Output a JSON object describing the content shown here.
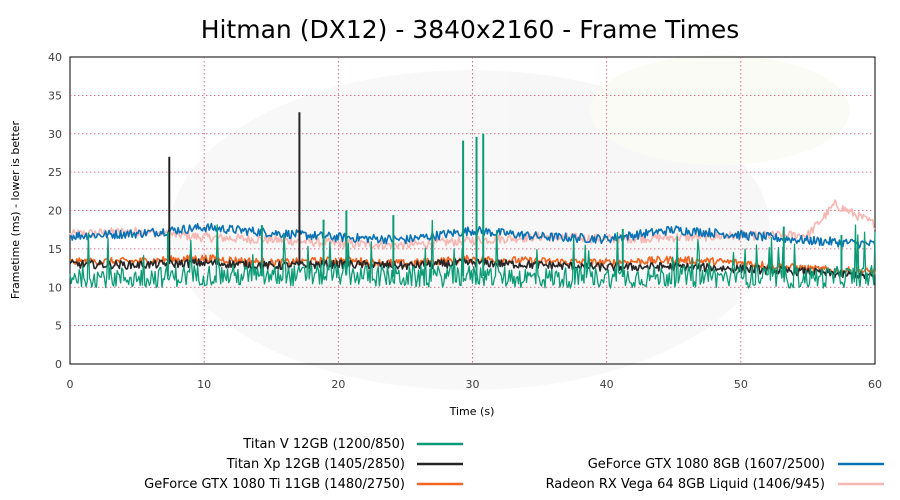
{
  "chart_data": {
    "type": "line",
    "title": "Hitman (DX12) - 3840x2160 - Frame Times",
    "xlabel": "Time (s)",
    "ylabel": "Frametime (ms) - lower is better",
    "xlim": [
      0,
      60
    ],
    "ylim": [
      0,
      40
    ],
    "xticks": [
      0,
      10,
      20,
      30,
      40,
      50,
      60
    ],
    "yticks": [
      0,
      5,
      10,
      15,
      20,
      25,
      30,
      35,
      40
    ],
    "grid": true,
    "legend_position": "bottom",
    "series": [
      {
        "name": "Titan V 12GB (1200/850)",
        "color": "#0b9b75",
        "x": [
          0,
          5,
          10,
          15,
          20,
          25,
          30,
          35,
          40,
          45,
          50,
          55,
          60
        ],
        "y": [
          11.5,
          11.2,
          11.6,
          11.4,
          11.7,
          11.3,
          11.5,
          11.2,
          11.3,
          11.4,
          11.3,
          11.2,
          11.5
        ],
        "spikes": [
          [
            7.3,
            17.2
          ],
          [
            14.3,
            18.1
          ],
          [
            18.9,
            18.8
          ],
          [
            20.6,
            20.0
          ],
          [
            24.1,
            19.4
          ],
          [
            29.3,
            29.1
          ],
          [
            30.3,
            29.6
          ],
          [
            30.8,
            30.0
          ],
          [
            41.2,
            17.6
          ],
          [
            53.2,
            17.9
          ],
          [
            57.5,
            16.8
          ]
        ]
      },
      {
        "name": "Titan Xp 12GB (1405/2850)",
        "color": "#262626",
        "x": [
          0,
          5,
          10,
          15,
          20,
          25,
          30,
          35,
          40,
          45,
          50,
          55,
          60
        ],
        "y": [
          13.0,
          12.9,
          13.2,
          12.8,
          13.0,
          12.8,
          13.2,
          12.9,
          12.6,
          12.7,
          12.4,
          12.0,
          11.4
        ],
        "spikes": [
          [
            7.4,
            27.0
          ],
          [
            17.1,
            32.8
          ]
        ]
      },
      {
        "name": "GeForce GTX 1080 Ti 11GB (1480/2750)",
        "color": "#f26522",
        "x": [
          0,
          5,
          10,
          15,
          20,
          25,
          30,
          35,
          40,
          45,
          50,
          55,
          60
        ],
        "y": [
          13.3,
          13.4,
          13.8,
          13.2,
          13.5,
          13.1,
          13.7,
          13.4,
          13.2,
          13.6,
          13.2,
          12.4,
          12.0
        ],
        "spikes": []
      },
      {
        "name": "GeForce GTX 1080 8GB (1607/2500)",
        "color": "#0b72b5",
        "x": [
          0,
          5,
          10,
          15,
          20,
          25,
          30,
          35,
          40,
          45,
          50,
          55,
          60
        ],
        "y": [
          16.7,
          17.0,
          17.8,
          17.1,
          16.5,
          16.2,
          17.4,
          16.6,
          16.3,
          17.5,
          16.8,
          16.1,
          15.6
        ],
        "spikes": []
      },
      {
        "name": "Radeon RX Vega 64 8GB Liquid (1406/945)",
        "color": "#f7b7b3",
        "x": [
          0,
          5,
          10,
          15,
          20,
          25,
          30,
          35,
          40,
          45,
          50,
          55,
          57,
          60
        ],
        "y": [
          16.9,
          17.3,
          16.5,
          16.2,
          15.7,
          15.5,
          16.1,
          16.6,
          16.3,
          16.5,
          16.7,
          16.8,
          20.8,
          18.2
        ],
        "spikes": []
      }
    ]
  }
}
